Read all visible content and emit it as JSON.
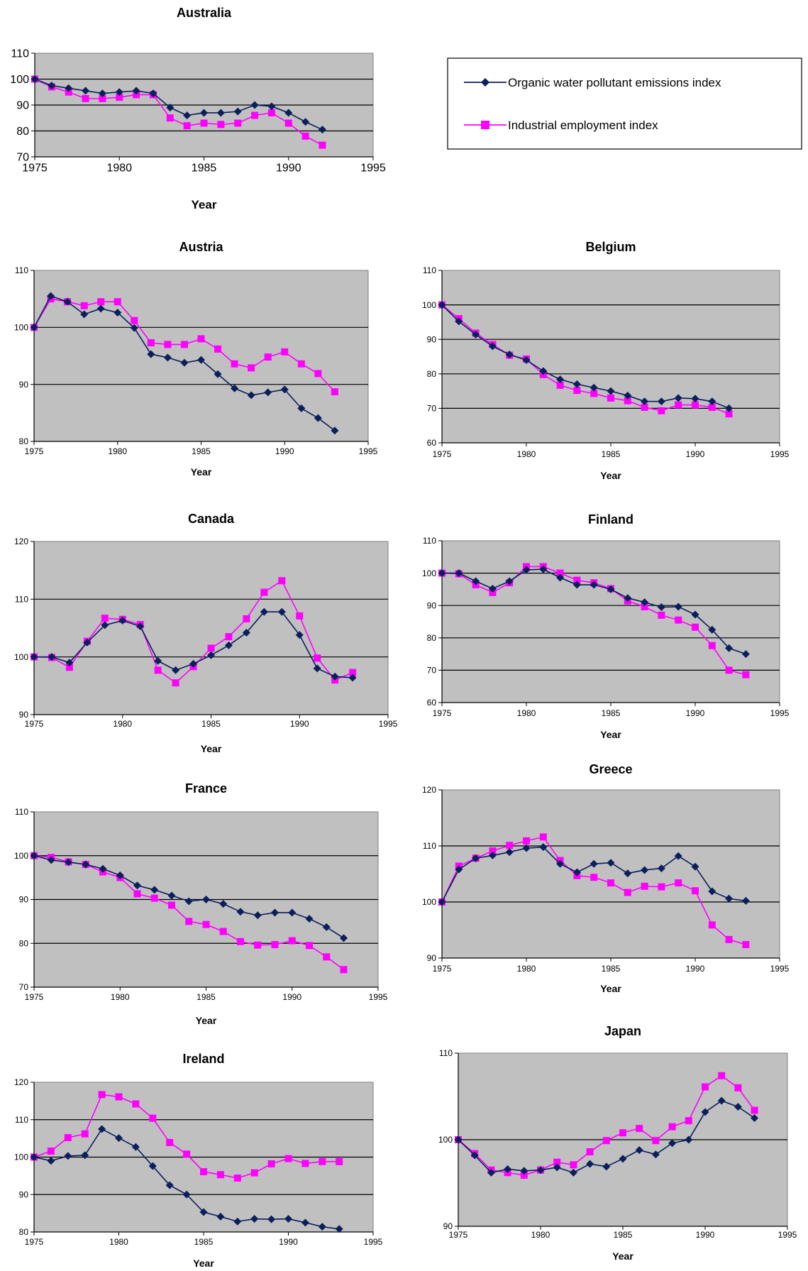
{
  "colors": {
    "emissions": "#0A1F5C",
    "employment": "#FF00FF",
    "plot_bg": "#C0C0C0",
    "grid": "#000000"
  },
  "legend": {
    "entries": [
      {
        "label": "Organic water pollutant emissions index",
        "color": "#0A1F5C",
        "marker": "diamond"
      },
      {
        "label": "Industrial employment index",
        "color": "#FF00FF",
        "marker": "square"
      }
    ]
  },
  "chart_data": [
    {
      "type": "line",
      "title": "Australia",
      "xlabel": "Year",
      "ylabel": "",
      "xlim": [
        1975,
        1995
      ],
      "ylim": [
        70,
        110
      ],
      "xticks": [
        1975,
        1980,
        1985,
        1990,
        1995
      ],
      "yticks": [
        70,
        80,
        90,
        100,
        110
      ],
      "grid": true,
      "series": [
        {
          "name": "Organic water pollutant emissions index",
          "x": [
            1975,
            1976,
            1977,
            1978,
            1979,
            1980,
            1981,
            1982,
            1983,
            1984,
            1985,
            1986,
            1987,
            1988,
            1989,
            1990,
            1991,
            1992
          ],
          "values": [
            100,
            97.5,
            96.5,
            95.5,
            94.5,
            95,
            95.5,
            94.5,
            89,
            86,
            87,
            87,
            87.5,
            90,
            89.5,
            87,
            83.5,
            80.5
          ]
        },
        {
          "name": "Industrial employment index",
          "x": [
            1975,
            1976,
            1977,
            1978,
            1979,
            1980,
            1981,
            1982,
            1983,
            1984,
            1985,
            1986,
            1987,
            1988,
            1989,
            1990,
            1991,
            1992
          ],
          "values": [
            100,
            97,
            95,
            92.5,
            92.5,
            93,
            94,
            94,
            85,
            82,
            83,
            82.5,
            83,
            86,
            87,
            83,
            78,
            74.5
          ]
        }
      ]
    },
    {
      "type": "line",
      "title": "Austria",
      "xlabel": "Year",
      "ylabel": "",
      "xlim": [
        1975,
        1995
      ],
      "ylim": [
        80,
        110
      ],
      "xticks": [
        1975,
        1980,
        1985,
        1990,
        1995
      ],
      "yticks": [
        80,
        90,
        100,
        110
      ],
      "grid": true,
      "series": [
        {
          "name": "Organic water pollutant emissions index",
          "x": [
            1975,
            1976,
            1977,
            1978,
            1979,
            1980,
            1981,
            1982,
            1983,
            1984,
            1985,
            1986,
            1987,
            1988,
            1989,
            1990,
            1991,
            1992,
            1993
          ],
          "values": [
            100,
            105.5,
            104.5,
            102.3,
            103.3,
            102.6,
            99.9,
            95.3,
            94.7,
            93.8,
            94.3,
            91.8,
            89.3,
            88.1,
            88.6,
            89.1,
            85.8,
            84.1,
            81.9
          ]
        },
        {
          "name": "Industrial employment index",
          "x": [
            1975,
            1976,
            1977,
            1978,
            1979,
            1980,
            1981,
            1982,
            1983,
            1984,
            1985,
            1986,
            1987,
            1988,
            1989,
            1990,
            1991,
            1992,
            1993
          ],
          "values": [
            100,
            105,
            104.5,
            103.8,
            104.5,
            104.5,
            101.2,
            97.3,
            97,
            97,
            98,
            96.2,
            93.6,
            92.9,
            94.8,
            95.7,
            93.6,
            91.9,
            88.7
          ]
        }
      ]
    },
    {
      "type": "line",
      "title": "Belgium",
      "xlabel": "Year",
      "ylabel": "",
      "xlim": [
        1975,
        1995
      ],
      "ylim": [
        60,
        110
      ],
      "xticks": [
        1975,
        1980,
        1985,
        1990,
        1995
      ],
      "yticks": [
        60,
        70,
        80,
        90,
        100,
        110
      ],
      "grid": true,
      "series": [
        {
          "name": "Organic water pollutant emissions index",
          "x": [
            1975,
            1976,
            1977,
            1978,
            1979,
            1980,
            1981,
            1982,
            1983,
            1984,
            1985,
            1986,
            1987,
            1988,
            1989,
            1990,
            1991,
            1992
          ],
          "values": [
            100,
            95.2,
            91.4,
            88,
            85.6,
            84,
            80.8,
            78.4,
            77,
            76,
            75,
            73.7,
            72,
            72,
            73,
            72.8,
            72,
            70
          ]
        },
        {
          "name": "Industrial employment index",
          "x": [
            1975,
            1976,
            1977,
            1978,
            1979,
            1980,
            1981,
            1982,
            1983,
            1984,
            1985,
            1986,
            1987,
            1988,
            1989,
            1990,
            1991,
            1992
          ],
          "values": [
            100,
            96,
            91.8,
            88.5,
            85.4,
            84.3,
            79.8,
            76.7,
            75.2,
            74.3,
            73,
            72.2,
            70.3,
            69.3,
            71,
            71,
            70.3,
            68.4
          ]
        }
      ]
    },
    {
      "type": "line",
      "title": "Canada",
      "xlabel": "Year",
      "ylabel": "",
      "xlim": [
        1975,
        1995
      ],
      "ylim": [
        90,
        120
      ],
      "xticks": [
        1975,
        1980,
        1985,
        1990,
        1995
      ],
      "yticks": [
        90,
        100,
        110,
        120
      ],
      "grid": true,
      "series": [
        {
          "name": "Organic water pollutant emissions index",
          "x": [
            1975,
            1976,
            1977,
            1978,
            1979,
            1980,
            1981,
            1982,
            1983,
            1984,
            1985,
            1986,
            1987,
            1988,
            1989,
            1990,
            1991,
            1992,
            1993
          ],
          "values": [
            100,
            100,
            99,
            102.5,
            105.5,
            106.3,
            105.3,
            99.3,
            97.7,
            98.8,
            100.3,
            102,
            104.2,
            107.8,
            107.8,
            103.8,
            98,
            96.6,
            96.4
          ]
        },
        {
          "name": "Industrial employment index",
          "x": [
            1975,
            1976,
            1977,
            1978,
            1979,
            1980,
            1981,
            1982,
            1983,
            1984,
            1985,
            1986,
            1987,
            1988,
            1989,
            1990,
            1991,
            1992,
            1993
          ],
          "values": [
            100,
            99.9,
            98.2,
            102.7,
            106.7,
            106.5,
            105.6,
            97.7,
            95.5,
            98.3,
            101.5,
            103.5,
            106.6,
            111.2,
            113.2,
            107.1,
            99.8,
            96,
            97.3
          ]
        }
      ]
    },
    {
      "type": "line",
      "title": "Finland",
      "xlabel": "Year",
      "ylabel": "",
      "xlim": [
        1975,
        1995
      ],
      "ylim": [
        60,
        110
      ],
      "xticks": [
        1975,
        1980,
        1985,
        1990,
        1995
      ],
      "yticks": [
        60,
        70,
        80,
        90,
        100,
        110
      ],
      "grid": true,
      "series": [
        {
          "name": "Organic water pollutant emissions index",
          "x": [
            1975,
            1976,
            1977,
            1978,
            1979,
            1980,
            1981,
            1982,
            1983,
            1984,
            1985,
            1986,
            1987,
            1988,
            1989,
            1990,
            1991,
            1992,
            1993
          ],
          "values": [
            100,
            100,
            97.5,
            95.2,
            97.5,
            101,
            101.2,
            98.6,
            96.4,
            96.4,
            95,
            92.3,
            91,
            89.5,
            89.6,
            87.2,
            82.5,
            76.8,
            75
          ]
        },
        {
          "name": "Industrial employment index",
          "x": [
            1975,
            1976,
            1977,
            1978,
            1979,
            1980,
            1981,
            1982,
            1983,
            1984,
            1985,
            1986,
            1987,
            1988,
            1989,
            1990,
            1991,
            1992,
            1993
          ],
          "values": [
            100,
            99.8,
            96.4,
            94,
            97,
            102,
            102,
            100,
            97.8,
            97,
            95.2,
            91.4,
            89.6,
            87,
            85.5,
            83.3,
            77.6,
            70,
            68.6
          ]
        }
      ]
    },
    {
      "type": "line",
      "title": "France",
      "xlabel": "Year",
      "ylabel": "",
      "xlim": [
        1975,
        1995
      ],
      "ylim": [
        70,
        110
      ],
      "xticks": [
        1975,
        1980,
        1985,
        1990,
        1995
      ],
      "yticks": [
        70,
        80,
        90,
        100,
        110
      ],
      "grid": true,
      "series": [
        {
          "name": "Organic water pollutant emissions index",
          "x": [
            1975,
            1976,
            1977,
            1978,
            1979,
            1980,
            1981,
            1982,
            1983,
            1984,
            1985,
            1986,
            1987,
            1988,
            1989,
            1990,
            1991,
            1992,
            1993
          ],
          "values": [
            100,
            99,
            98.5,
            98,
            97,
            95.5,
            93.2,
            92.2,
            90.9,
            89.6,
            90,
            89,
            87.2,
            86.4,
            87,
            87,
            85.6,
            83.7,
            81.2
          ]
        },
        {
          "name": "Industrial employment index",
          "x": [
            1975,
            1976,
            1977,
            1978,
            1979,
            1980,
            1981,
            1982,
            1983,
            1984,
            1985,
            1986,
            1987,
            1988,
            1989,
            1990,
            1991,
            1992,
            1993
          ],
          "values": [
            100,
            99.6,
            98.6,
            98,
            96.3,
            95,
            91.3,
            90.3,
            88.7,
            85,
            84.3,
            82.7,
            80.4,
            79.6,
            79.7,
            80.6,
            79.5,
            76.9,
            74
          ]
        }
      ]
    },
    {
      "type": "line",
      "title": "Greece",
      "xlabel": "Year",
      "ylabel": "",
      "xlim": [
        1975,
        1995
      ],
      "ylim": [
        90,
        120
      ],
      "xticks": [
        1975,
        1980,
        1985,
        1990,
        1995
      ],
      "yticks": [
        90,
        100,
        110,
        120
      ],
      "grid": true,
      "series": [
        {
          "name": "Organic water pollutant emissions index",
          "x": [
            1975,
            1976,
            1977,
            1978,
            1979,
            1980,
            1981,
            1982,
            1983,
            1984,
            1985,
            1986,
            1987,
            1988,
            1989,
            1990,
            1991,
            1992,
            1993
          ],
          "values": [
            100,
            105.8,
            107.8,
            108.3,
            108.9,
            109.6,
            109.8,
            106.8,
            105.3,
            106.8,
            107,
            105.1,
            105.7,
            106,
            108.2,
            106.3,
            101.9,
            100.6,
            100.2
          ]
        },
        {
          "name": "Industrial employment index",
          "x": [
            1975,
            1976,
            1977,
            1978,
            1979,
            1980,
            1981,
            1982,
            1983,
            1984,
            1985,
            1986,
            1987,
            1988,
            1989,
            1990,
            1991,
            1992,
            1993
          ],
          "values": [
            100,
            106.4,
            107.8,
            109.1,
            110.1,
            110.9,
            111.6,
            107.4,
            104.7,
            104.4,
            103.4,
            101.7,
            102.8,
            102.7,
            103.4,
            102,
            95.9,
            93.3,
            92.4
          ]
        }
      ]
    },
    {
      "type": "line",
      "title": "Ireland",
      "xlabel": "Year",
      "ylabel": "",
      "xlim": [
        1975,
        1995
      ],
      "ylim": [
        80,
        120
      ],
      "xticks": [
        1975,
        1980,
        1985,
        1990,
        1995
      ],
      "yticks": [
        80,
        90,
        100,
        110,
        120
      ],
      "grid": true,
      "series": [
        {
          "name": "Organic water pollutant emissions index",
          "x": [
            1975,
            1976,
            1977,
            1978,
            1979,
            1980,
            1981,
            1982,
            1983,
            1984,
            1985,
            1986,
            1987,
            1988,
            1989,
            1990,
            1991,
            1992,
            1993
          ],
          "values": [
            100,
            99,
            100.3,
            100.5,
            107.5,
            105.1,
            102.7,
            97.6,
            92.5,
            90,
            85.3,
            84.1,
            82.8,
            83.5,
            83.4,
            83.5,
            82.5,
            81.4,
            80.8
          ]
        },
        {
          "name": "Industrial employment index",
          "x": [
            1975,
            1976,
            1977,
            1978,
            1979,
            1980,
            1981,
            1982,
            1983,
            1984,
            1985,
            1986,
            1987,
            1988,
            1989,
            1990,
            1991,
            1992,
            1993
          ],
          "values": [
            100,
            101.6,
            105.2,
            106.2,
            116.7,
            116.1,
            114.2,
            110.4,
            103.9,
            100.8,
            96.1,
            95.3,
            94.4,
            95.8,
            98.2,
            99.6,
            98.3,
            98.8,
            98.8
          ]
        }
      ]
    },
    {
      "type": "line",
      "title": "Japan",
      "xlabel": "Year",
      "ylabel": "",
      "xlim": [
        1975,
        1995
      ],
      "ylim": [
        90,
        110
      ],
      "xticks": [
        1975,
        1980,
        1985,
        1990,
        1995
      ],
      "yticks": [
        90,
        100,
        110
      ],
      "grid": true,
      "series": [
        {
          "name": "Organic water pollutant emissions index",
          "x": [
            1975,
            1976,
            1977,
            1978,
            1979,
            1980,
            1981,
            1982,
            1983,
            1984,
            1985,
            1986,
            1987,
            1988,
            1989,
            1990,
            1991,
            1992,
            1993
          ],
          "values": [
            100,
            98.2,
            96.2,
            96.6,
            96.4,
            96.5,
            96.8,
            96.2,
            97.2,
            96.9,
            97.8,
            98.8,
            98.3,
            99.6,
            100,
            103.2,
            104.5,
            103.8,
            102.5
          ]
        },
        {
          "name": "Industrial employment index",
          "x": [
            1975,
            1976,
            1977,
            1978,
            1979,
            1980,
            1981,
            1982,
            1983,
            1984,
            1985,
            1986,
            1987,
            1988,
            1989,
            1990,
            1991,
            1992,
            1993
          ],
          "values": [
            100,
            98.4,
            96.5,
            96.2,
            95.9,
            96.5,
            97.4,
            97.1,
            98.6,
            99.9,
            100.8,
            101.3,
            99.9,
            101.5,
            102.2,
            106.1,
            107.4,
            106,
            103.4
          ]
        }
      ]
    }
  ]
}
